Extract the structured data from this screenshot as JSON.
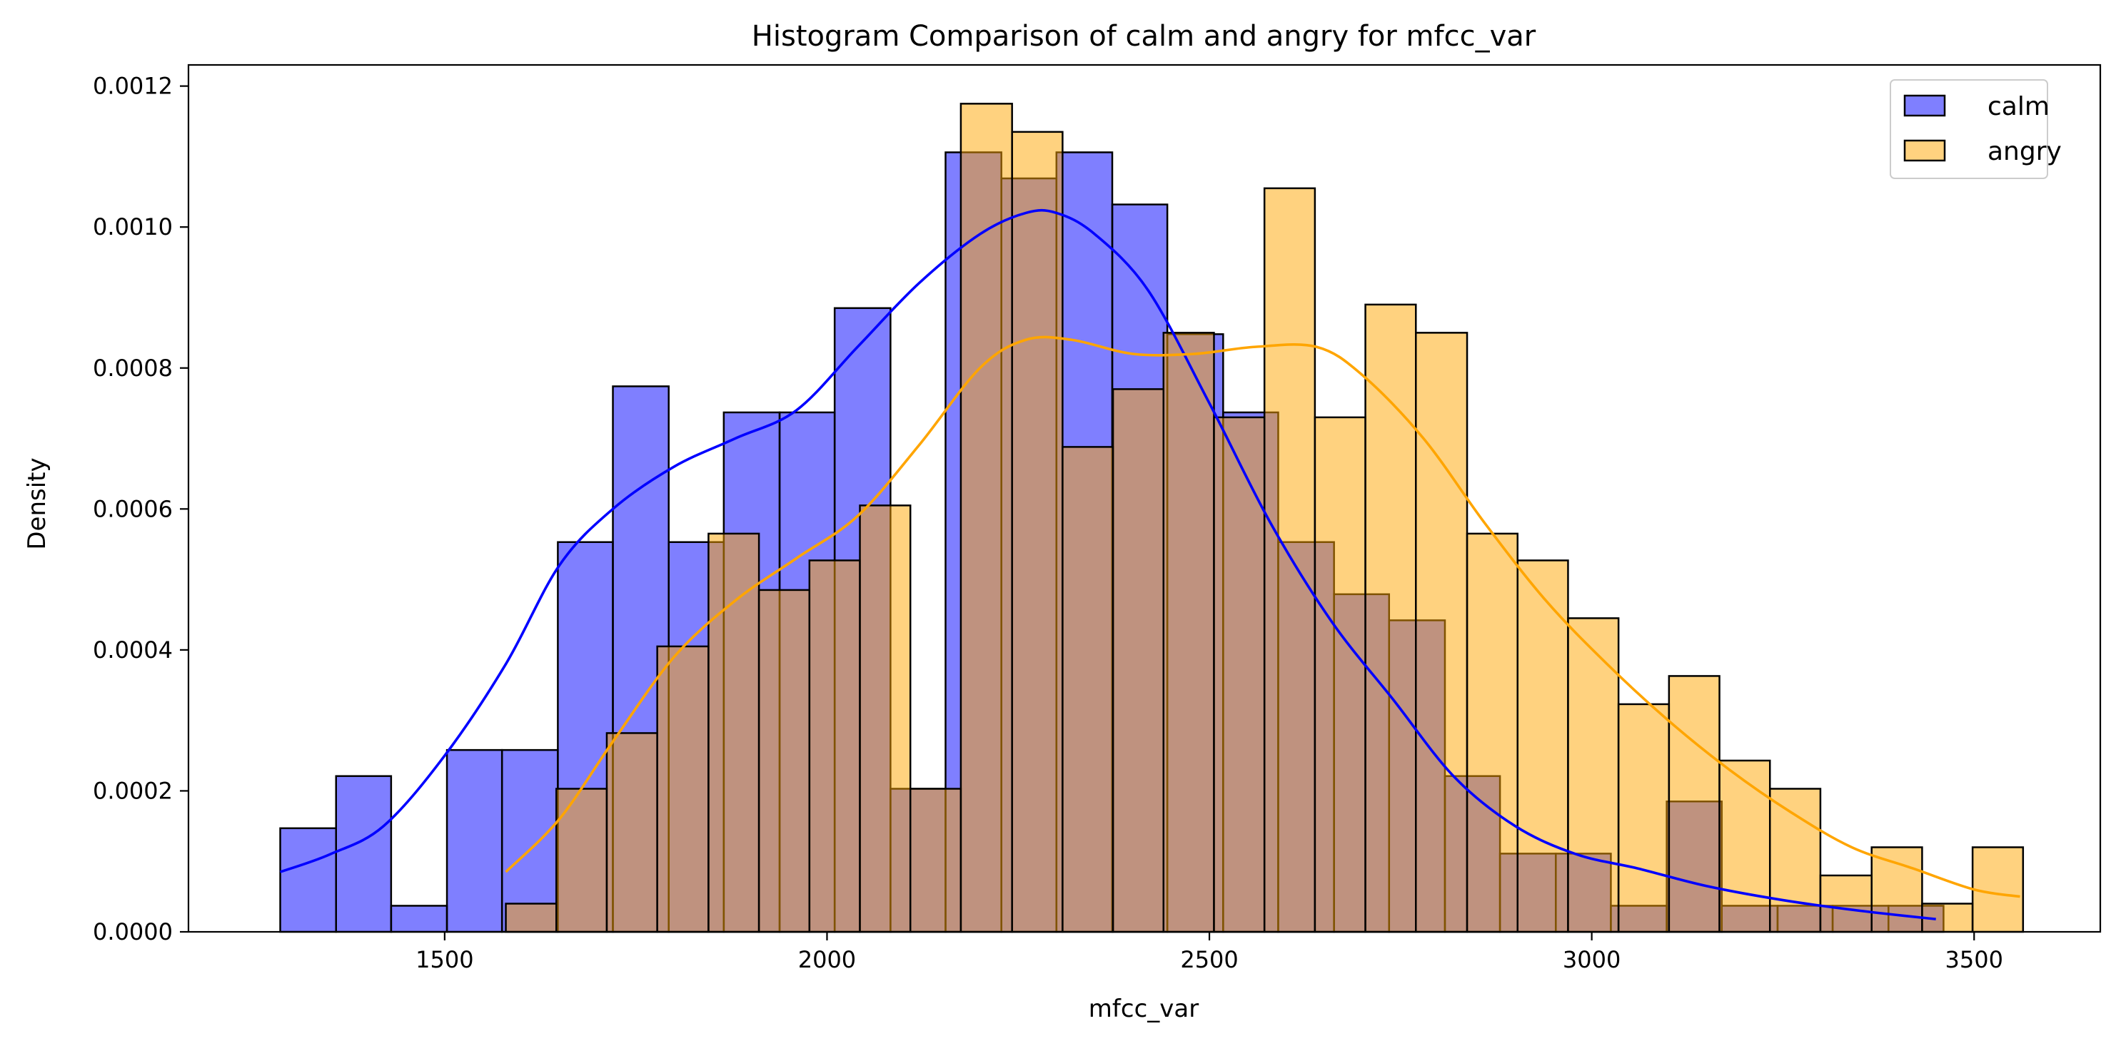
{
  "chart_data": {
    "type": "histogram",
    "title": "Histogram Comparison of calm and angry for mfcc_var",
    "xlabel": "mfcc_var",
    "ylabel": "Density",
    "xlim": [
      1165,
      3665
    ],
    "ylim": [
      0,
      0.00123
    ],
    "xticks": [
      1500,
      2000,
      2500,
      3000,
      3500
    ],
    "xtick_labels": [
      "1500",
      "2000",
      "2500",
      "3000",
      "3500"
    ],
    "yticks": [
      0,
      0.0002,
      0.0004,
      0.0006,
      0.0008,
      0.001,
      0.0012
    ],
    "ytick_labels": [
      "0.0000",
      "0.0002",
      "0.0004",
      "0.0006",
      "0.0008",
      "0.0010",
      "0.0012"
    ],
    "grid": false,
    "legend_position": "top-right",
    "series": [
      {
        "name": "calm",
        "color": "#0000ff",
        "kde_color": "#0000ff",
        "alpha": 0.5,
        "bin_edges": [
          1285,
          1358,
          1430,
          1503,
          1575,
          1648,
          1720,
          1793,
          1865,
          1938,
          2010,
          2083,
          2155,
          2228,
          2300,
          2373,
          2445,
          2518,
          2590,
          2663,
          2735,
          2808,
          2880,
          2953,
          3025,
          3098,
          3170,
          3243,
          3315,
          3388,
          3460
        ],
        "densities": [
          0.000147,
          0.000221,
          3.7e-05,
          0.000258,
          0.000258,
          0.000553,
          0.000774,
          0.000553,
          0.000737,
          0.000737,
          0.000885,
          0.000203,
          0.001106,
          0.001069,
          0.001106,
          0.001032,
          0.000848,
          0.000737,
          0.000553,
          0.000479,
          0.000442,
          0.000221,
          0.000111,
          0.000111,
          3.7e-05,
          0.000185,
          3.7e-05,
          3.7e-05,
          3.7e-05,
          3.7e-05
        ],
        "kde_x": [
          1285,
          1350,
          1420,
          1500,
          1580,
          1650,
          1720,
          1800,
          1880,
          1960,
          2040,
          2120,
          2200,
          2260,
          2300,
          2350,
          2420,
          2500,
          2580,
          2660,
          2740,
          2820,
          2900,
          2980,
          3060,
          3150,
          3250,
          3350,
          3450
        ],
        "kde_y": [
          8.5e-05,
          0.00011,
          0.00015,
          0.00025,
          0.00038,
          0.00052,
          0.0006,
          0.00066,
          0.0007,
          0.00074,
          0.00083,
          0.00092,
          0.00099,
          0.00102,
          0.00102,
          0.00099,
          0.00091,
          0.00075,
          0.00058,
          0.00044,
          0.00033,
          0.00022,
          0.00015,
          0.00011,
          9e-05,
          6.5e-05,
          4.5e-05,
          3e-05,
          1.8e-05
        ]
      },
      {
        "name": "angry",
        "color": "#ffa500",
        "kde_color": "#ffa500",
        "alpha": 0.5,
        "bin_edges": [
          1580,
          1646,
          1712,
          1778,
          1845,
          1911,
          1977,
          2043,
          2109,
          2175,
          2242,
          2308,
          2374,
          2440,
          2506,
          2572,
          2638,
          2704,
          2770,
          2837,
          2903,
          2969,
          3035,
          3101,
          3167,
          3233,
          3299,
          3366,
          3432,
          3498,
          3564
        ],
        "densities": [
          4e-05,
          0.000203,
          0.000282,
          0.000405,
          0.000565,
          0.000485,
          0.000527,
          0.000605,
          0.000203,
          0.001175,
          0.001135,
          0.000688,
          0.00077,
          0.00085,
          0.00073,
          0.001055,
          0.00073,
          0.00089,
          0.00085,
          0.000565,
          0.000527,
          0.000445,
          0.000323,
          0.000363,
          0.000243,
          0.000203,
          8e-05,
          0.00012,
          4e-05,
          0.00012
        ],
        "kde_x": [
          1580,
          1650,
          1720,
          1800,
          1880,
          1960,
          2040,
          2120,
          2200,
          2260,
          2320,
          2400,
          2480,
          2560,
          2640,
          2700,
          2780,
          2860,
          2940,
          3020,
          3100,
          3180,
          3260,
          3340,
          3420,
          3500,
          3560
        ],
        "kde_y": [
          8.5e-05,
          0.00016,
          0.00027,
          0.00039,
          0.00047,
          0.00053,
          0.00059,
          0.00069,
          0.0008,
          0.00084,
          0.00084,
          0.00082,
          0.00082,
          0.00083,
          0.00083,
          0.00079,
          0.0007,
          0.00058,
          0.00047,
          0.00038,
          0.0003,
          0.00023,
          0.00017,
          0.00012,
          9e-05,
          6e-05,
          5e-05
        ]
      }
    ]
  }
}
